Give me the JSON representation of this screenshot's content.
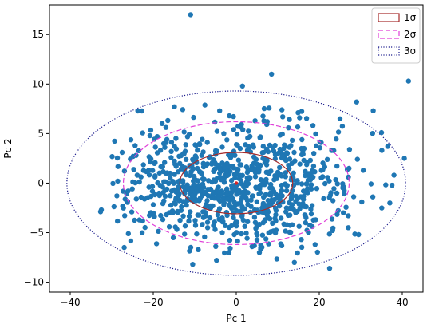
{
  "chart_data": {
    "type": "scatter",
    "title": "",
    "xlabel": "Pc 1",
    "ylabel": "Pc 2",
    "xlim": [
      -45,
      45
    ],
    "ylim": [
      -11,
      18
    ],
    "grid": false,
    "legend_placement": "top-right",
    "x_ticks": [
      -40,
      -20,
      0,
      20,
      40
    ],
    "x_tick_labels": [
      "−40",
      "−20",
      "0",
      "20",
      "40"
    ],
    "y_ticks": [
      -10,
      -5,
      0,
      5,
      10,
      15
    ],
    "y_tick_labels": [
      "−10",
      "−5",
      "0",
      "5",
      "10",
      "15"
    ],
    "point_color": "#1f77b4",
    "center": {
      "x": 0,
      "y": 0,
      "color": "#d62728"
    },
    "ellipses": [
      {
        "label": "1σ",
        "center": [
          0,
          0
        ],
        "rx": 13.6,
        "ry": 3.1,
        "color": "#a52a2a",
        "style": "solid"
      },
      {
        "label": "2σ",
        "center": [
          0,
          0
        ],
        "rx": 27.2,
        "ry": 6.2,
        "color": "#e040d8",
        "style": "dashed"
      },
      {
        "label": "3σ",
        "center": [
          0,
          0
        ],
        "rx": 40.8,
        "ry": 9.3,
        "color": "#1a1a8c",
        "style": "dotted"
      }
    ],
    "cloud": {
      "count": 900,
      "sigma_x": 13.6,
      "sigma_y": 3.1,
      "seed": 7
    },
    "outliers": [
      {
        "x": -11,
        "y": 17
      },
      {
        "x": 1.5,
        "y": 9.8
      },
      {
        "x": 8.5,
        "y": 11
      },
      {
        "x": 41.5,
        "y": 10.3
      },
      {
        "x": 40.5,
        "y": 2.5
      },
      {
        "x": 36.5,
        "y": 3.7
      },
      {
        "x": -32.5,
        "y": -2.7
      },
      {
        "x": -32.7,
        "y": -2.9
      },
      {
        "x": -27,
        "y": -6.5
      },
      {
        "x": -10.5,
        "y": -8.2
      },
      {
        "x": 14,
        "y": -8
      },
      {
        "x": 33,
        "y": 7.3
      },
      {
        "x": 29,
        "y": 8.2
      },
      {
        "x": 37,
        "y": -2
      },
      {
        "x": 38,
        "y": 0.8
      },
      {
        "x": 25,
        "y": 6.5
      },
      {
        "x": -26,
        "y": -5.1
      },
      {
        "x": 22.5,
        "y": -8.6
      },
      {
        "x": 11,
        "y": 7.4
      },
      {
        "x": -4,
        "y": 7.3
      },
      {
        "x": -27.5,
        "y": 3.1
      },
      {
        "x": 35,
        "y": 5.1
      },
      {
        "x": 19,
        "y": -6.2
      },
      {
        "x": 27,
        "y": -4.5
      }
    ],
    "legend": [
      {
        "label": "1σ",
        "color": "#a52a2a",
        "style": "solid"
      },
      {
        "label": "2σ",
        "color": "#e040d8",
        "style": "dashed"
      },
      {
        "label": "3σ",
        "color": "#1a1a8c",
        "style": "dotted"
      }
    ]
  }
}
